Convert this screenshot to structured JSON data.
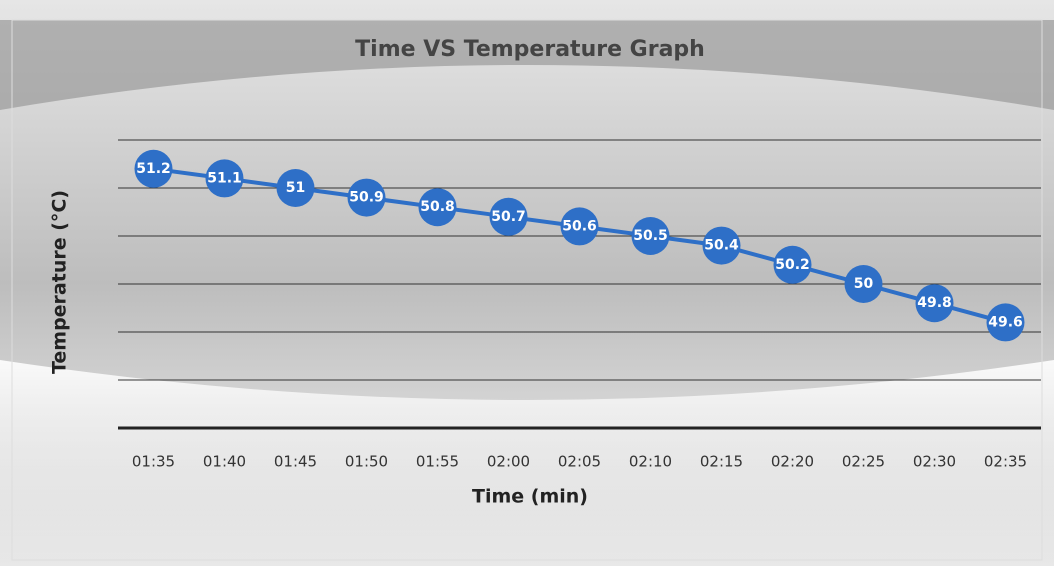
{
  "chart_data": {
    "type": "line",
    "title": "Time VS Temperature Graph",
    "x_label": "Time (min)",
    "y_label": "Temperature (°C)",
    "categories": [
      "01:35",
      "01:40",
      "01:45",
      "01:50",
      "01:55",
      "02:00",
      "02:05",
      "02:10",
      "02:15",
      "02:20",
      "02:25",
      "02:30",
      "02:35"
    ],
    "series": [
      {
        "name": "Temperature",
        "color": "#2e6fc7",
        "values": [
          51.2,
          51.1,
          51,
          50.9,
          50.8,
          50.7,
          50.6,
          50.5,
          50.4,
          50.2,
          50,
          49.8,
          49.6
        ]
      }
    ],
    "ylim": [
      48.5,
      51.5
    ],
    "yticks": [
      48.5,
      49,
      49.5,
      50,
      50.5,
      51,
      51.5
    ],
    "grid": true
  }
}
